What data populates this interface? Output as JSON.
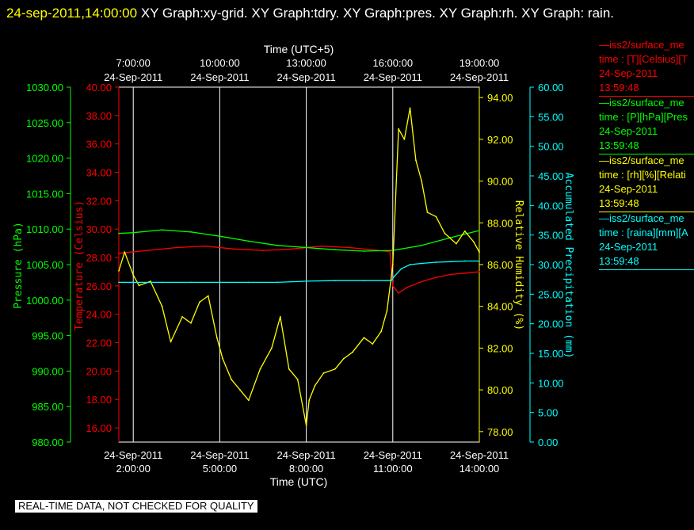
{
  "header": {
    "timestamp": "24-sep-2011,14:00:00",
    "graphs_text": " XY Graph:xy-grid.  XY Graph:tdry.  XY Graph:pres.  XY Graph:rh.  XY Graph: rain."
  },
  "footer_text": "REAL-TIME DATA, NOT CHECKED FOR QUALITY",
  "colors": {
    "temperature": "#ff0000",
    "pressure": "#00ff00",
    "humidity": "#ffff00",
    "precipitation": "#00ffff",
    "grid": "#ffffff",
    "background": "#000000"
  },
  "legend": [
    {
      "name": "—iss2/surface_me",
      "desc": "time : [T][Celsius][T",
      "date": "24-Sep-2011",
      "time": "13:59:48",
      "color": "#ff0000"
    },
    {
      "name": "—iss2/surface_me",
      "desc": "time : [P][hPa][Pres",
      "date": "24-Sep-2011",
      "time": "13:59:48",
      "color": "#00ff00"
    },
    {
      "name": "—iss2/surface_me",
      "desc": "time : [rh][%][Relati",
      "date": "24-Sep-2011",
      "time": "13:59:48",
      "color": "#ffff00"
    },
    {
      "name": "—iss2/surface_me",
      "desc": "time : [raina][mm][A",
      "date": "24-Sep-2011",
      "time": "13:59:48",
      "color": "#00ffff"
    }
  ],
  "chart_data": {
    "type": "line",
    "grid": true,
    "x_bottom": {
      "label": "Time (UTC)",
      "range": [
        1.5,
        14.0
      ],
      "ticks": [
        {
          "v": 2,
          "date": "24-Sep-2011",
          "time": "2:00:00"
        },
        {
          "v": 5,
          "date": "24-Sep-2011",
          "time": "5:00:00"
        },
        {
          "v": 8,
          "date": "24-Sep-2011",
          "time": "8:00:00"
        },
        {
          "v": 11,
          "date": "24-Sep-2011",
          "time": "11:00:00"
        },
        {
          "v": 14,
          "date": "24-Sep-2011",
          "time": "14:00:00"
        }
      ]
    },
    "x_top": {
      "label": "Time (UTC+5)",
      "ticks": [
        {
          "v": 2,
          "time": "7:00:00",
          "date": "24-Sep-2011"
        },
        {
          "v": 5,
          "time": "10:00:00",
          "date": "24-Sep-2011"
        },
        {
          "v": 8,
          "time": "13:00:00",
          "date": "24-Sep-2011"
        },
        {
          "v": 11,
          "time": "16:00:00",
          "date": "24-Sep-2011"
        },
        {
          "v": 14,
          "time": "19:00:00",
          "date": "24-Sep-2011"
        }
      ]
    },
    "axes": {
      "pressure": {
        "label": "Pressure (hPa)",
        "range": [
          980,
          1030
        ],
        "ticks": [
          "980.00",
          "985.00",
          "990.00",
          "995.00",
          "1000.00",
          "1005.00",
          "1010.00",
          "1015.00",
          "1020.00",
          "1025.00",
          "1030.00"
        ]
      },
      "temperature": {
        "label": "Temperature (Celsius)",
        "range": [
          15,
          40
        ],
        "ticks": [
          "16.00",
          "18.00",
          "20.00",
          "22.00",
          "24.00",
          "26.00",
          "28.00",
          "30.00",
          "32.00",
          "34.00",
          "36.00",
          "38.00",
          "40.00"
        ]
      },
      "humidity": {
        "label": "Relative Humidity (%)",
        "range": [
          77.5,
          94.5
        ],
        "ticks": [
          "78.00",
          "80.00",
          "82.00",
          "84.00",
          "86.00",
          "88.00",
          "90.00",
          "92.00",
          "94.00"
        ]
      },
      "precipitation": {
        "label": "Accumulated Precipitation (mm)",
        "range": [
          0,
          60
        ],
        "ticks": [
          "0.00",
          "5.00",
          "10.00",
          "15.00",
          "20.00",
          "25.00",
          "30.00",
          "35.00",
          "40.00",
          "45.00",
          "50.00",
          "55.00",
          "60.00"
        ]
      }
    },
    "series": [
      {
        "name": "Temperature",
        "axis": "temperature",
        "x": [
          1.5,
          2.5,
          3.5,
          4.5,
          5.5,
          6.5,
          7.5,
          8.0,
          8.5,
          9.5,
          10.5,
          10.9,
          11.0,
          11.2,
          11.5,
          12.0,
          12.5,
          13.0,
          13.5,
          14.0
        ],
        "y": [
          28.3,
          28.5,
          28.7,
          28.8,
          28.6,
          28.5,
          28.6,
          28.7,
          28.8,
          28.7,
          28.5,
          28.4,
          26.0,
          25.5,
          25.9,
          26.3,
          26.6,
          26.8,
          26.9,
          27.0
        ]
      },
      {
        "name": "Pressure",
        "axis": "pressure",
        "x": [
          1.5,
          2.0,
          3.0,
          4.0,
          5.0,
          6.0,
          7.0,
          8.0,
          9.0,
          10.0,
          11.0,
          12.0,
          13.0,
          13.5,
          14.0
        ],
        "y": [
          1009.4,
          1009.5,
          1009.9,
          1009.6,
          1009.0,
          1008.3,
          1007.7,
          1007.4,
          1007.1,
          1006.9,
          1007.0,
          1007.7,
          1008.8,
          1009.3,
          1009.8
        ]
      },
      {
        "name": "Relative Humidity",
        "axis": "humidity",
        "x": [
          1.5,
          1.7,
          2.0,
          2.2,
          2.6,
          3.0,
          3.3,
          3.7,
          4.0,
          4.3,
          4.6,
          4.9,
          5.1,
          5.4,
          5.7,
          6.0,
          6.4,
          6.8,
          7.1,
          7.4,
          7.7,
          8.0,
          8.1,
          8.3,
          8.6,
          9.0,
          9.3,
          9.6,
          10.0,
          10.3,
          10.6,
          10.8,
          11.0,
          11.2,
          11.4,
          11.6,
          11.8,
          12.0,
          12.2,
          12.5,
          12.8,
          13.2,
          13.5,
          13.8,
          14.0
        ],
        "y": [
          85.7,
          86.6,
          85.5,
          85.0,
          85.2,
          84.0,
          82.3,
          83.5,
          83.2,
          84.2,
          84.5,
          82.5,
          81.5,
          80.5,
          80.0,
          79.5,
          81.0,
          82.0,
          83.5,
          81.0,
          80.5,
          78.3,
          79.5,
          80.2,
          80.8,
          81.0,
          81.5,
          81.8,
          82.5,
          82.2,
          82.8,
          83.8,
          86.0,
          92.5,
          92.0,
          93.5,
          91.0,
          90.0,
          88.5,
          88.3,
          87.5,
          87.0,
          87.6,
          87.1,
          86.6
        ]
      },
      {
        "name": "Accumulated Precipitation",
        "axis": "precipitation",
        "x": [
          1.5,
          2.0,
          3.0,
          4.0,
          5.0,
          6.0,
          7.0,
          8.0,
          9.0,
          10.0,
          10.95,
          11.05,
          11.3,
          11.6,
          12.0,
          12.5,
          13.0,
          13.5,
          14.0
        ],
        "y": [
          27.0,
          27.0,
          27.0,
          27.0,
          27.0,
          27.0,
          27.0,
          27.2,
          27.3,
          27.3,
          27.3,
          28.0,
          29.3,
          30.0,
          30.2,
          30.4,
          30.5,
          30.6,
          30.6
        ]
      }
    ]
  }
}
